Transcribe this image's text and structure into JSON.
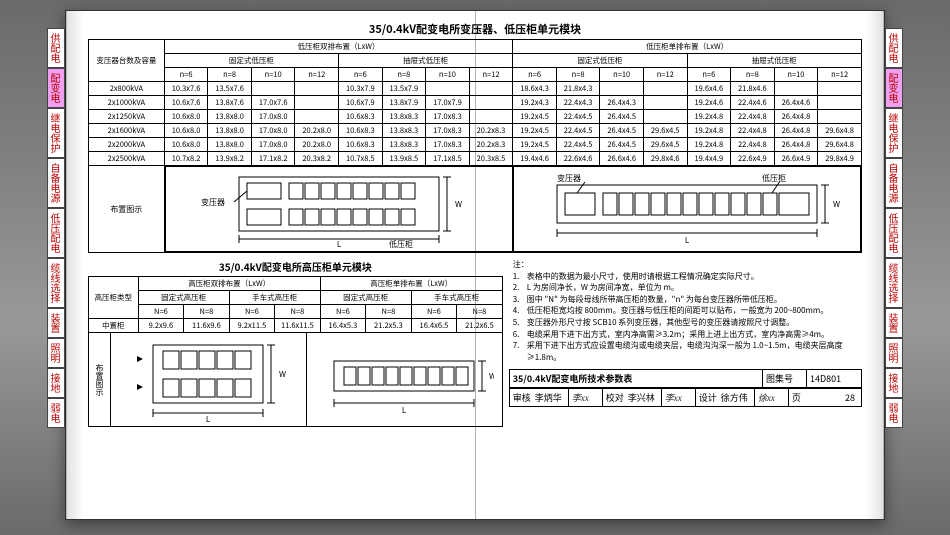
{
  "tabs": [
    "供配电",
    "配变电",
    "继电保护",
    "自备电源",
    "低压配电",
    "缆线选择",
    "装置",
    "照明",
    "接地",
    "弱电"
  ],
  "tab_colors": {
    "bg_default": "#ffffff",
    "bg_active": "#f0a0f0",
    "text": "#b00020"
  },
  "upper": {
    "title": "35/0.4kV配变电所变压器、低压柜单元模块",
    "group_a": "低压柜双排布置（LxW）",
    "group_b": "低压柜单排布置（LxW）",
    "sub_a1": "固定式低压柜",
    "sub_a2": "抽屉式低压柜",
    "sub_b1": "固定式低压柜",
    "sub_b2": "抽屉式低压柜",
    "rowhead": "变压器台数及容量",
    "n_labels": [
      "n=6",
      "n=8",
      "n=10",
      "n=12"
    ],
    "rows": [
      {
        "cap": "2x800kVA",
        "a1": [
          "10.3x7.6",
          "13.5x7.6",
          "",
          ""
        ],
        "a2": [
          "10.3x7.9",
          "13.5x7.9",
          "",
          ""
        ],
        "b1": [
          "18.6x4.3",
          "21.8x4.3",
          "",
          ""
        ],
        "b2": [
          "19.6x4.6",
          "21.8x4.6",
          "",
          ""
        ]
      },
      {
        "cap": "2x1000kVA",
        "a1": [
          "10.6x7.6",
          "13.8x7.6",
          "17.0x7.6",
          ""
        ],
        "a2": [
          "10.6x7.9",
          "13.8x7.9",
          "17.0x7.9",
          ""
        ],
        "b1": [
          "19.2x4.3",
          "22.4x4.3",
          "26.4x4.3",
          ""
        ],
        "b2": [
          "19.2x4.6",
          "22.4x4.6",
          "26.4x4.6",
          ""
        ]
      },
      {
        "cap": "2x1250kVA",
        "a1": [
          "10.6x8.0",
          "13.8x8.0",
          "17.0x8.0",
          ""
        ],
        "a2": [
          "10.6x8.3",
          "13.8x8.3",
          "17.0x8.3",
          ""
        ],
        "b1": [
          "19.2x4.5",
          "22.4x4.5",
          "26.4x4.5",
          ""
        ],
        "b2": [
          "19.2x4.8",
          "22.4x4.8",
          "26.4x4.8",
          ""
        ]
      },
      {
        "cap": "2x1600kVA",
        "a1": [
          "10.6x8.0",
          "13.8x8.0",
          "17.0x8.0",
          "20.2x8.0"
        ],
        "a2": [
          "10.6x8.3",
          "13.8x8.3",
          "17.0x8.3",
          "20.2x8.3"
        ],
        "b1": [
          "19.2x4.5",
          "22.4x4.5",
          "26.4x4.5",
          "29.6x4.5"
        ],
        "b2": [
          "19.2x4.8",
          "22.4x4.8",
          "26.4x4.8",
          "29.6x4.8"
        ]
      },
      {
        "cap": "2x2000kVA",
        "a1": [
          "10.6x8.0",
          "13.8x8.0",
          "17.0x8.0",
          "20.2x8.0"
        ],
        "a2": [
          "10.6x8.3",
          "13.8x8.3",
          "17.0x8.3",
          "20.2x8.3"
        ],
        "b1": [
          "19.2x4.5",
          "22.4x4.5",
          "26.4x4.5",
          "29.6x4.5"
        ],
        "b2": [
          "19.2x4.8",
          "22.4x4.8",
          "26.4x4.8",
          "29.6x4.8"
        ]
      },
      {
        "cap": "2x2500kVA",
        "a1": [
          "10.7x8.2",
          "13.9x8.2",
          "17.1x8.2",
          "20.3x8.2"
        ],
        "a2": [
          "10.7x8.5",
          "13.9x8.5",
          "17.1x8.5",
          "20.3x8.5"
        ],
        "b1": [
          "19.4x4.6",
          "22.6x4.6",
          "26.6x4.6",
          "29.8x4.6"
        ],
        "b2": [
          "19.4x4.9",
          "22.6x4.9",
          "26.6x4.9",
          "29.8x4.9"
        ]
      }
    ],
    "diag_label": "布置图示",
    "diag_labels": {
      "transformer": "变压器",
      "lv": "低压柜"
    },
    "colors": {
      "line": "#000000",
      "fill": "#ffffff"
    }
  },
  "lower": {
    "title": "35/0.4kV配变电所高压柜单元模块",
    "group_a": "高压柜双排布置（LxW）",
    "group_b": "高压柜单排布置（LxW）",
    "sub": [
      "固定式高压柜",
      "手车式高压柜",
      "固定式高压柜",
      "手车式高压柜"
    ],
    "rowhead": "高压柜类型",
    "n_labels": [
      "N=6",
      "N=8"
    ],
    "rowname": "中置柜",
    "vals": [
      "9.2x9.6",
      "11.6x9.6",
      "9.2x11.5",
      "11.6x11.5",
      "16.4x5.3",
      "21.2x5.3",
      "16.4x6.5",
      "21.2x6.5"
    ],
    "diag_label": "布置图示"
  },
  "notes": {
    "head": "注：",
    "items": [
      "表格中的数据为最小尺寸，使用时请根据工程情况确定实际尺寸。",
      "L 为房间净长，W 为房间净宽，单位为 m。",
      "图中 \"N\" 为每段母线所带高压柜的数量，\"n\" 为每台变压器所带低压柜。",
      "低压柜柜宽均按 800mm。变压器与低压柜的间距可以贴布，一般宽为 200~800mm。",
      "变压器外形尺寸按 SCB10 系列变压器，其他型号的变压器请按照尺寸调整。",
      "电缆采用下进下出方式，室内净高需≥3.2m；采用上进上出方式，室内净高需≥4m。",
      "采用下进下出方式应设置电缆沟或电缆夹层，电缆沟沟深一般为 1.0~1.5m，电缆夹层高度≥1.8m。"
    ]
  },
  "title_block": {
    "main": "35/0.4kV配变电所技术参数表",
    "code_label": "图集号",
    "code": "14D801",
    "row2": [
      {
        "k": "审核",
        "v": "李炳华"
      },
      {
        "sig": "李xx"
      },
      {
        "k": "校对",
        "v": "李兴林"
      },
      {
        "sig": "李xx"
      },
      {
        "k": "设计",
        "v": "徐方伟"
      },
      {
        "sig": "徐xx"
      },
      {
        "k": "页",
        "v": "28"
      }
    ]
  }
}
